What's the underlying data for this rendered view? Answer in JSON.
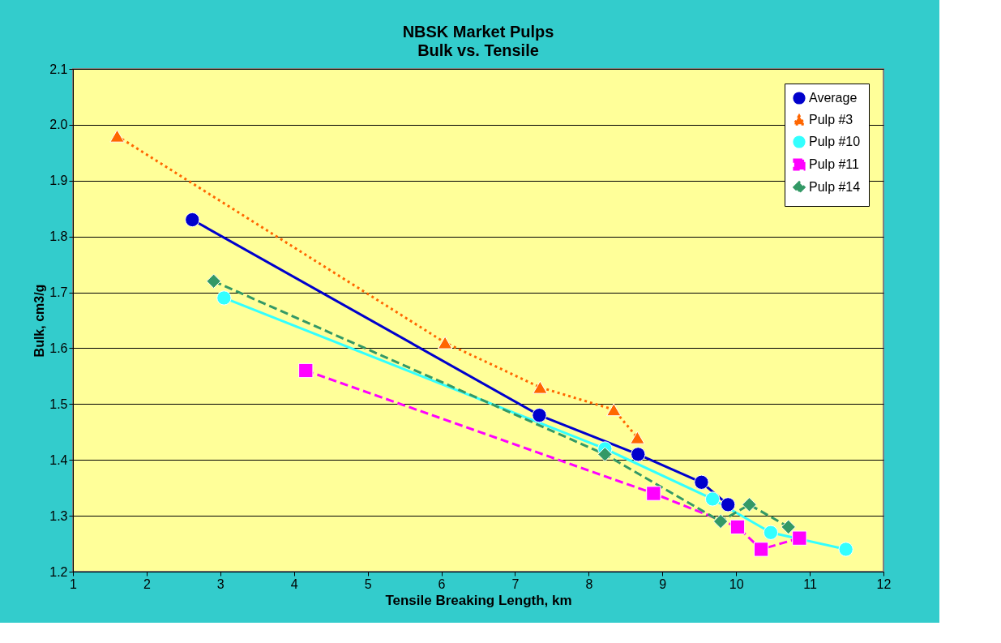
{
  "chart_data": {
    "type": "line",
    "title": "NBSK Market Pulps",
    "subtitle": "Bulk vs. Tensile",
    "xlabel": "Tensile Breaking Length, km",
    "ylabel": "Bulk, cm3/g",
    "xlim": [
      1,
      12
    ],
    "xticks": [
      1,
      2,
      3,
      4,
      5,
      6,
      7,
      8,
      9,
      10,
      11,
      12
    ],
    "ylim": [
      1.2,
      2.1
    ],
    "yticks": [
      1.2,
      1.3,
      1.4,
      1.5,
      1.6,
      1.7,
      1.8,
      1.9,
      {
        "value": 2.0,
        "label": "2.0"
      },
      2.1
    ],
    "grid": "y",
    "legend": "top right",
    "series": [
      {
        "name": "Average",
        "color": "#0000cc",
        "marker": "circle",
        "line_style": "solid",
        "x": [
          2.62,
          7.33,
          8.67,
          9.53,
          9.89
        ],
        "values": [
          1.83,
          1.48,
          1.41,
          1.36,
          1.32
        ]
      },
      {
        "name": "Pulp #3",
        "color": "#ff6600",
        "marker": "triangle",
        "line_style": "dotted",
        "x": [
          1.6,
          6.05,
          7.34,
          8.34,
          8.66
        ],
        "values": [
          1.98,
          1.61,
          1.53,
          1.49,
          1.44
        ]
      },
      {
        "name": "Pulp #10",
        "color": "#33ffff",
        "marker": "circle",
        "line_style": "solid",
        "x": [
          3.05,
          8.22,
          9.68,
          10.47,
          11.49
        ],
        "values": [
          1.69,
          1.42,
          1.33,
          1.27,
          1.24
        ]
      },
      {
        "name": "Pulp #11",
        "color": "#ff00ff",
        "marker": "square",
        "line_style": "dashed",
        "x": [
          4.16,
          8.88,
          10.02,
          10.34,
          10.86
        ],
        "values": [
          1.56,
          1.34,
          1.28,
          1.24,
          1.26
        ]
      },
      {
        "name": "Pulp #14",
        "color": "#339966",
        "marker": "diamond",
        "line_style": "dashed",
        "x": [
          2.91,
          8.22,
          9.79,
          10.18,
          10.71
        ],
        "values": [
          1.72,
          1.41,
          1.29,
          1.32,
          1.28
        ]
      }
    ]
  }
}
